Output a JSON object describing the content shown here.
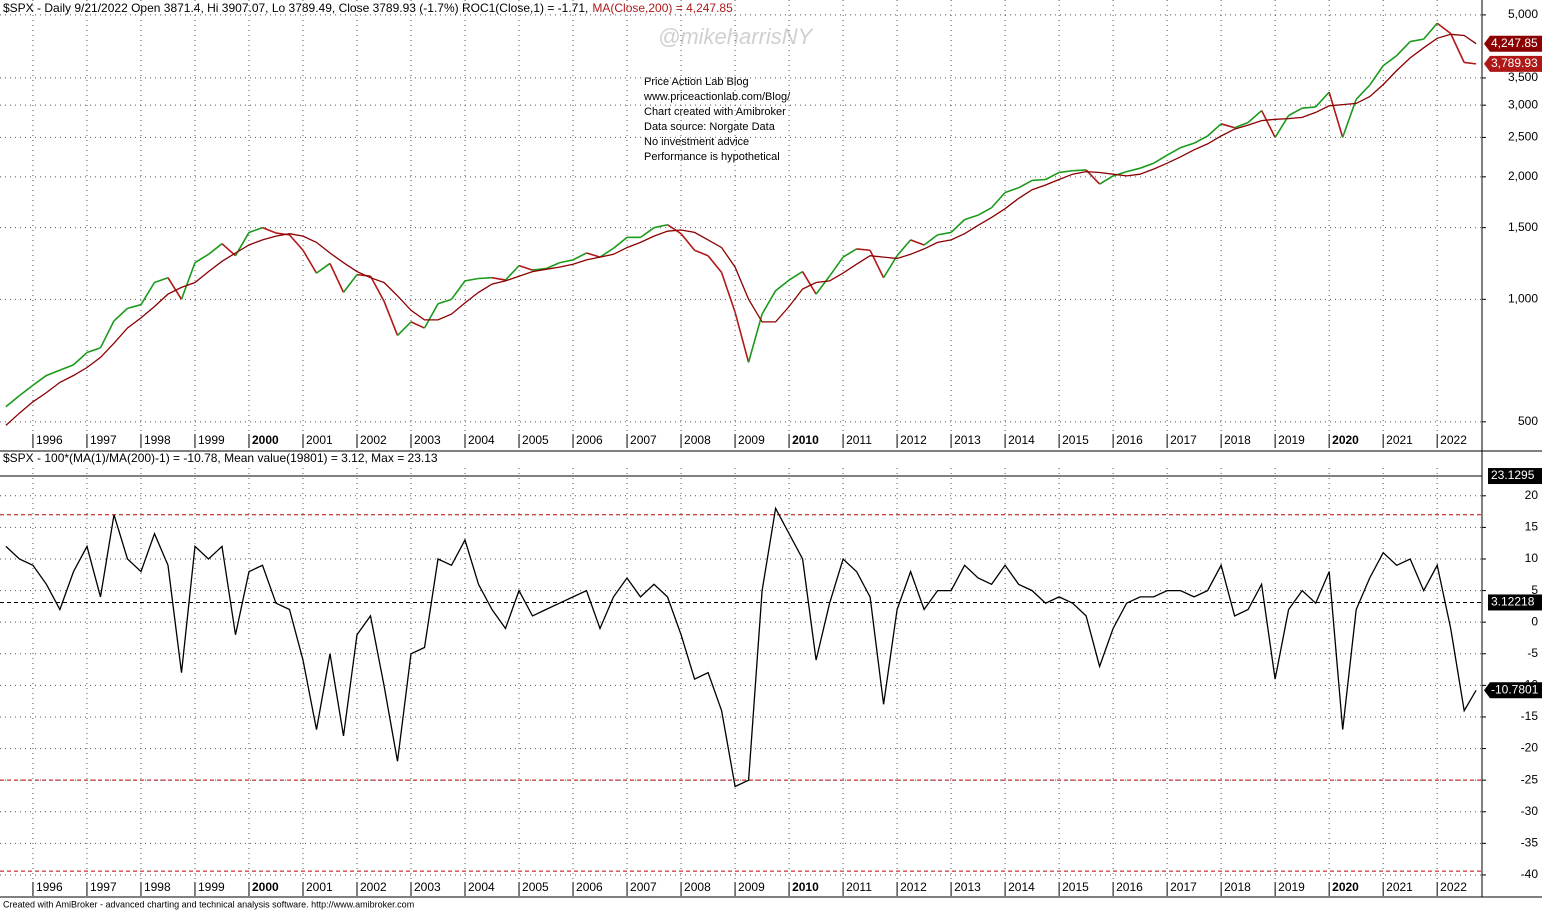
{
  "chart_data": [
    {
      "type": "line",
      "log_scale": true,
      "grid": true,
      "title": "$SPX - Daily 9/21/2022 Open 3871.4, Hi 3907.07, Lo 3789.49, Close 3789.93 (-1.7%) ROC1(Close,1) = -1.71,",
      "subtitle": "MA(Close,200) = 4,247.85",
      "annotations": [
        "Price Action Lab Blog",
        "www.priceactionlab.com/Blog/",
        "Chart created with Amibroker",
        "Data source: Norgate Data",
        "No investment advice",
        "Performance is hypothetical"
      ],
      "xlim": [
        1995.39,
        2022.83
      ],
      "xticks": [
        1996,
        1997,
        1998,
        1999,
        2000,
        2001,
        2002,
        2003,
        2004,
        2005,
        2006,
        2007,
        2008,
        2009,
        2010,
        2011,
        2012,
        2013,
        2014,
        2015,
        2016,
        2017,
        2018,
        2019,
        2020,
        2021,
        2022
      ],
      "bold_xticks": [
        2000,
        2010,
        2020
      ],
      "ylim": [
        472,
        5440
      ],
      "yticks": [
        500,
        {
          "value": 1000,
          "label": "1,000"
        },
        {
          "value": 1500,
          "label": "1,500"
        },
        {
          "value": 2000,
          "label": "2,000"
        },
        {
          "value": 2500,
          "label": "2,500"
        },
        {
          "value": 3000,
          "label": "3,000"
        },
        {
          "value": 3500,
          "label": "3,500"
        },
        {
          "value": 5000,
          "label": "5,000"
        }
      ],
      "x": [
        1995.5,
        1995.75,
        1996,
        1996.25,
        1996.5,
        1996.75,
        1997,
        1997.25,
        1997.5,
        1997.75,
        1998,
        1998.25,
        1998.5,
        1998.75,
        1999,
        1999.25,
        1999.5,
        1999.75,
        2000,
        2000.25,
        2000.5,
        2000.75,
        2001,
        2001.25,
        2001.5,
        2001.75,
        2002,
        2002.25,
        2002.5,
        2002.75,
        2003,
        2003.25,
        2003.5,
        2003.75,
        2004,
        2004.25,
        2004.5,
        2004.75,
        2005,
        2005.25,
        2005.5,
        2005.75,
        2006,
        2006.25,
        2006.5,
        2006.75,
        2007,
        2007.25,
        2007.5,
        2007.75,
        2008,
        2008.25,
        2008.5,
        2008.75,
        2009,
        2009.25,
        2009.5,
        2009.75,
        2010,
        2010.25,
        2010.5,
        2010.75,
        2011,
        2011.25,
        2011.5,
        2011.75,
        2012,
        2012.25,
        2012.5,
        2012.75,
        2013,
        2013.25,
        2013.5,
        2013.75,
        2014,
        2014.25,
        2014.5,
        2014.75,
        2015,
        2015.25,
        2015.5,
        2015.75,
        2016,
        2016.25,
        2016.5,
        2016.75,
        2017,
        2017.25,
        2017.5,
        2017.75,
        2018,
        2018.25,
        2018.5,
        2018.75,
        2019,
        2019.25,
        2019.5,
        2019.75,
        2020,
        2020.25,
        2020.5,
        2020.75,
        2021,
        2021.25,
        2021.5,
        2021.75,
        2022,
        2022.25,
        2022.5,
        2022.72
      ],
      "series": [
        {
          "up_color": "#1a9a1a",
          "down_color": "#b01818",
          "label_color": "#b01818",
          "last_value_label": "3,789.93",
          "values": [
            545,
            580,
            615,
            650,
            670,
            690,
            740,
            760,
            885,
            950,
            970,
            1100,
            1130,
            1000,
            1230,
            1290,
            1370,
            1280,
            1460,
            1500,
            1455,
            1440,
            1320,
            1160,
            1225,
            1040,
            1150,
            1140,
            990,
            815,
            880,
            850,
            975,
            1000,
            1110,
            1125,
            1130,
            1115,
            1210,
            1180,
            1190,
            1230,
            1250,
            1300,
            1270,
            1335,
            1420,
            1420,
            1500,
            1525,
            1450,
            1320,
            1280,
            1165,
            930,
            700,
            920,
            1050,
            1115,
            1170,
            1030,
            1140,
            1270,
            1330,
            1320,
            1130,
            1280,
            1400,
            1360,
            1440,
            1460,
            1570,
            1610,
            1680,
            1830,
            1880,
            1960,
            1970,
            2050,
            2070,
            2080,
            1920,
            2010,
            2060,
            2100,
            2160,
            2260,
            2360,
            2420,
            2520,
            2700,
            2640,
            2720,
            2910,
            2500,
            2830,
            2950,
            2970,
            3230,
            2500,
            3100,
            3360,
            3750,
            3970,
            4300,
            4360,
            4770,
            4500,
            3820,
            3789.93
          ]
        },
        {
          "color": "#8b0000",
          "last_value_label": "4,247.85",
          "values": [
            490,
            525,
            560,
            590,
            625,
            650,
            680,
            720,
            780,
            850,
            900,
            960,
            1030,
            1070,
            1100,
            1170,
            1240,
            1300,
            1360,
            1400,
            1430,
            1450,
            1430,
            1380,
            1300,
            1230,
            1170,
            1130,
            1100,
            1020,
            940,
            890,
            890,
            920,
            980,
            1040,
            1090,
            1110,
            1140,
            1170,
            1185,
            1200,
            1220,
            1250,
            1270,
            1290,
            1340,
            1380,
            1430,
            1470,
            1480,
            1460,
            1400,
            1340,
            1200,
            1000,
            880,
            880,
            960,
            1060,
            1100,
            1110,
            1160,
            1220,
            1280,
            1270,
            1260,
            1290,
            1330,
            1380,
            1400,
            1450,
            1520,
            1590,
            1670,
            1770,
            1860,
            1910,
            1970,
            2030,
            2060,
            2050,
            2030,
            2010,
            2030,
            2090,
            2160,
            2240,
            2330,
            2410,
            2520,
            2620,
            2680,
            2750,
            2770,
            2780,
            2800,
            2880,
            2990,
            3010,
            3030,
            3150,
            3370,
            3650,
            3920,
            4150,
            4380,
            4480,
            4450,
            4247.85
          ]
        }
      ]
    },
    {
      "type": "line",
      "grid": true,
      "title": "$SPX - 100*(MA(1)/MA(200)-1) = -10.78,   Mean value(19801) = 3.12, Max  = 23.13",
      "xlim": [
        1995.39,
        2022.83
      ],
      "xticks": [
        1996,
        1997,
        1998,
        1999,
        2000,
        2001,
        2002,
        2003,
        2004,
        2005,
        2006,
        2007,
        2008,
        2009,
        2010,
        2011,
        2012,
        2013,
        2014,
        2015,
        2016,
        2017,
        2018,
        2019,
        2020,
        2021,
        2022
      ],
      "bold_xticks": [
        2000,
        2010,
        2020
      ],
      "ylim": [
        -40.8,
        24.4
      ],
      "yticks": [
        20,
        15,
        10,
        5,
        0,
        -5,
        -10,
        -15,
        -20,
        -25,
        -30,
        -35,
        -40
      ],
      "max_line": 23.1295,
      "mean_line": 3.12218,
      "threshold_lines": [
        17,
        -25,
        -39.4
      ],
      "threshold_color": "#c00000",
      "x": [
        1995.5,
        1995.75,
        1996,
        1996.25,
        1996.5,
        1996.75,
        1997,
        1997.25,
        1997.5,
        1997.75,
        1998,
        1998.25,
        1998.5,
        1998.75,
        1999,
        1999.25,
        1999.5,
        1999.75,
        2000,
        2000.25,
        2000.5,
        2000.75,
        2001,
        2001.25,
        2001.5,
        2001.75,
        2002,
        2002.25,
        2002.5,
        2002.75,
        2003,
        2003.25,
        2003.5,
        2003.75,
        2004,
        2004.25,
        2004.5,
        2004.75,
        2005,
        2005.25,
        2005.5,
        2005.75,
        2006,
        2006.25,
        2006.5,
        2006.75,
        2007,
        2007.25,
        2007.5,
        2007.75,
        2008,
        2008.25,
        2008.5,
        2008.75,
        2009,
        2009.25,
        2009.5,
        2009.75,
        2010,
        2010.25,
        2010.5,
        2010.75,
        2011,
        2011.25,
        2011.5,
        2011.75,
        2012,
        2012.25,
        2012.5,
        2012.75,
        2013,
        2013.25,
        2013.5,
        2013.75,
        2014,
        2014.25,
        2014.5,
        2014.75,
        2015,
        2015.25,
        2015.5,
        2015.75,
        2016,
        2016.25,
        2016.5,
        2016.75,
        2017,
        2017.25,
        2017.5,
        2017.75,
        2018,
        2018.25,
        2018.5,
        2018.75,
        2019,
        2019.25,
        2019.5,
        2019.75,
        2020,
        2020.25,
        2020.5,
        2020.75,
        2021,
        2021.25,
        2021.5,
        2021.75,
        2022,
        2022.25,
        2022.5,
        2022.72
      ],
      "series": [
        {
          "color": "#000000",
          "values": [
            12,
            10,
            9,
            6,
            2,
            8,
            12,
            4,
            17,
            10,
            8,
            14,
            9,
            -8,
            12,
            10,
            12,
            -2,
            8,
            9,
            3,
            2,
            -6,
            -17,
            -5,
            -18,
            -2,
            1,
            -10,
            -22,
            -5,
            -4,
            10,
            9,
            13,
            6,
            2,
            -1,
            5,
            1,
            2,
            3,
            4,
            5,
            -1,
            4,
            7,
            4,
            6,
            4,
            -2,
            -9,
            -8,
            -14,
            -26,
            -25,
            5,
            18,
            14,
            10,
            -6,
            3,
            10,
            8,
            4,
            -13,
            2,
            8,
            2,
            5,
            5,
            9,
            7,
            6,
            9,
            6,
            5,
            3,
            4,
            3,
            1,
            -7,
            -1,
            3,
            4,
            4,
            5,
            5,
            4,
            5,
            9,
            1,
            2,
            6,
            -9,
            2,
            5,
            3,
            8,
            -17,
            2,
            7,
            11,
            9,
            10,
            5,
            9,
            -1,
            -14,
            -10.7801
          ]
        }
      ]
    }
  ],
  "watermark": "@mikeharrisNY",
  "footer": "Created with AmiBroker - advanced charting and technical analysis software. http://www.amibroker.com"
}
